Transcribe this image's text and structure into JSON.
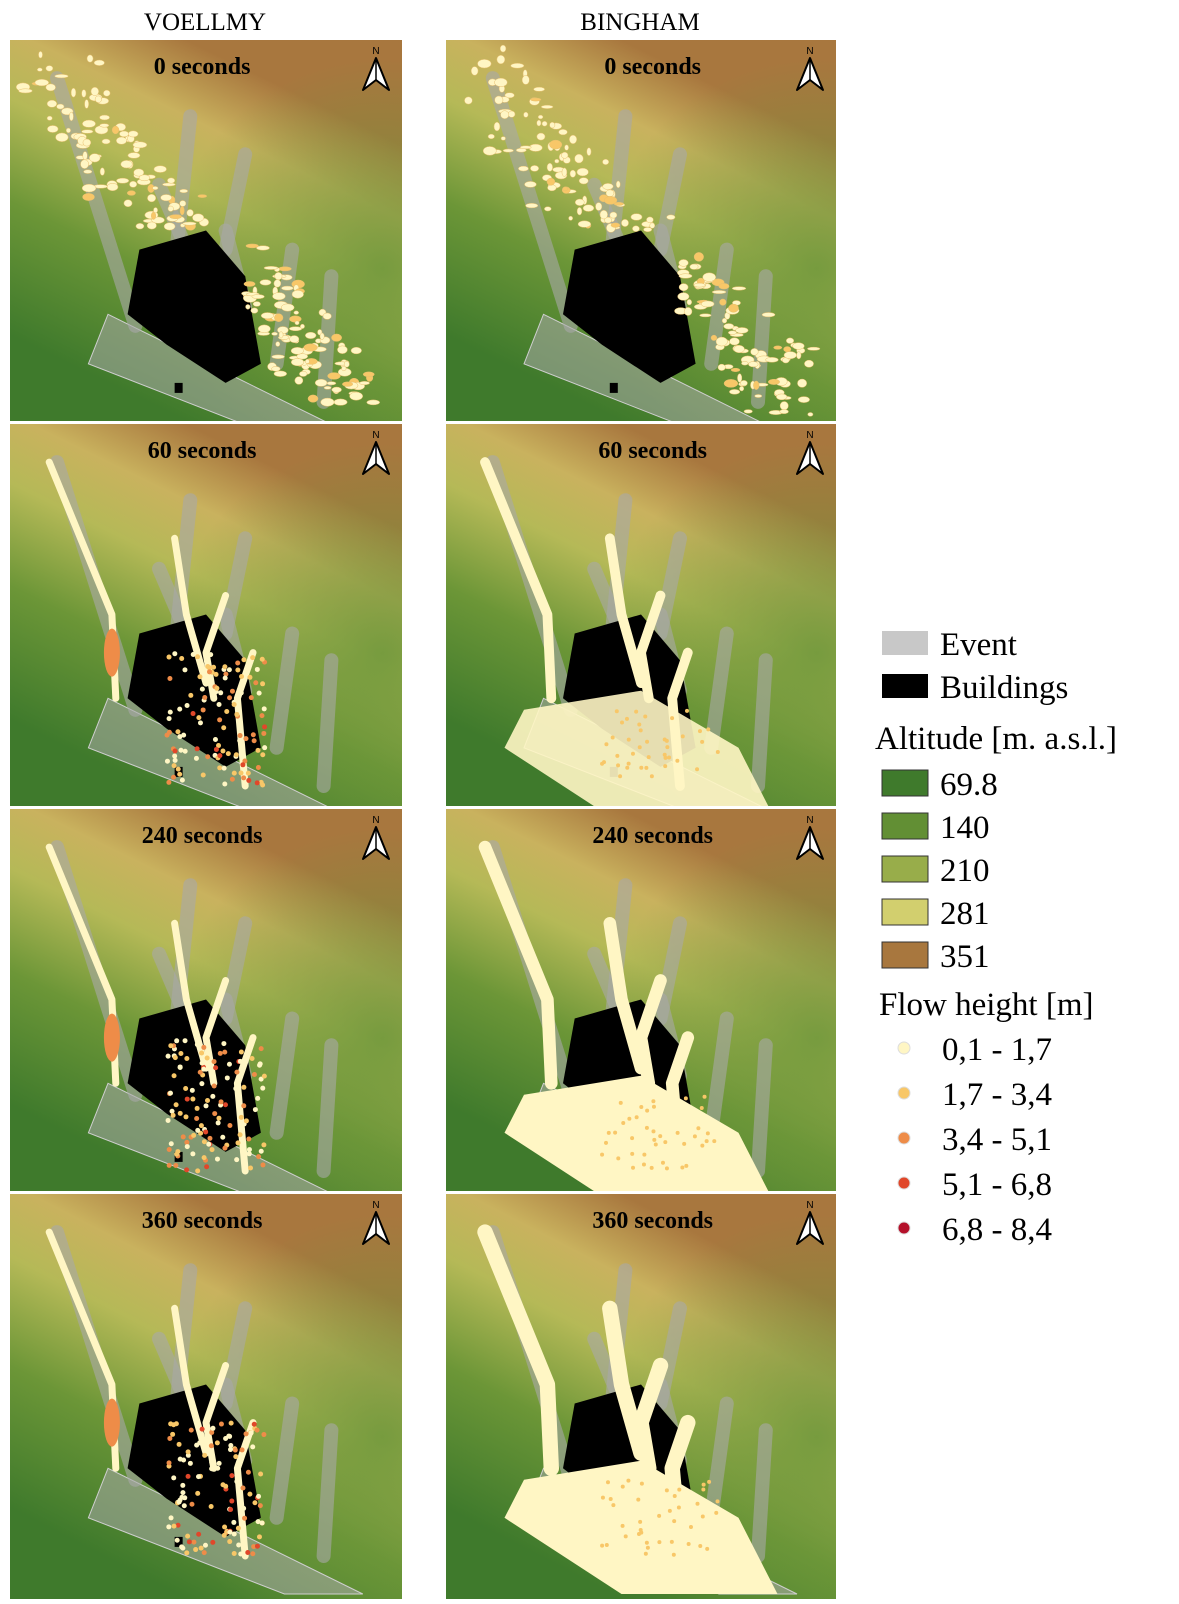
{
  "columns": [
    {
      "title": "VOELLMY",
      "panels": [
        {
          "label": "0 seconds"
        },
        {
          "label": "60 seconds"
        },
        {
          "label": "240 seconds"
        },
        {
          "label": "360 seconds"
        }
      ]
    },
    {
      "title": "BINGHAM",
      "panels": [
        {
          "label": "0 seconds"
        },
        {
          "label": "60 seconds"
        },
        {
          "label": "240 seconds"
        },
        {
          "label": "360 seconds"
        }
      ]
    }
  ],
  "north_label": "N",
  "legend": {
    "event": {
      "label": "Event",
      "color": "#c8c8c8"
    },
    "buildings": {
      "label": "Buildings",
      "color": "#000000"
    },
    "altitude": {
      "title": "Altitude [m. a.s.l.]",
      "items": [
        {
          "label": "69.8",
          "color": "#3f7a2c"
        },
        {
          "label": "140",
          "color": "#628f34"
        },
        {
          "label": "210",
          "color": "#98ad4a"
        },
        {
          "label": "281",
          "color": "#d2cf6e"
        },
        {
          "label": "351",
          "color": "#a8773e"
        }
      ]
    },
    "flow": {
      "title": "Flow height [m]",
      "items": [
        {
          "label": "0,1 - 1,7",
          "color": "#fff6c4"
        },
        {
          "label": "1,7 - 3,4",
          "color": "#f8c768"
        },
        {
          "label": "3,4 - 5,1",
          "color": "#ee8c48"
        },
        {
          "label": "5,1 - 6,8",
          "color": "#e0472a"
        },
        {
          "label": "6,8 - 8,4",
          "color": "#b4102a"
        }
      ]
    }
  }
}
